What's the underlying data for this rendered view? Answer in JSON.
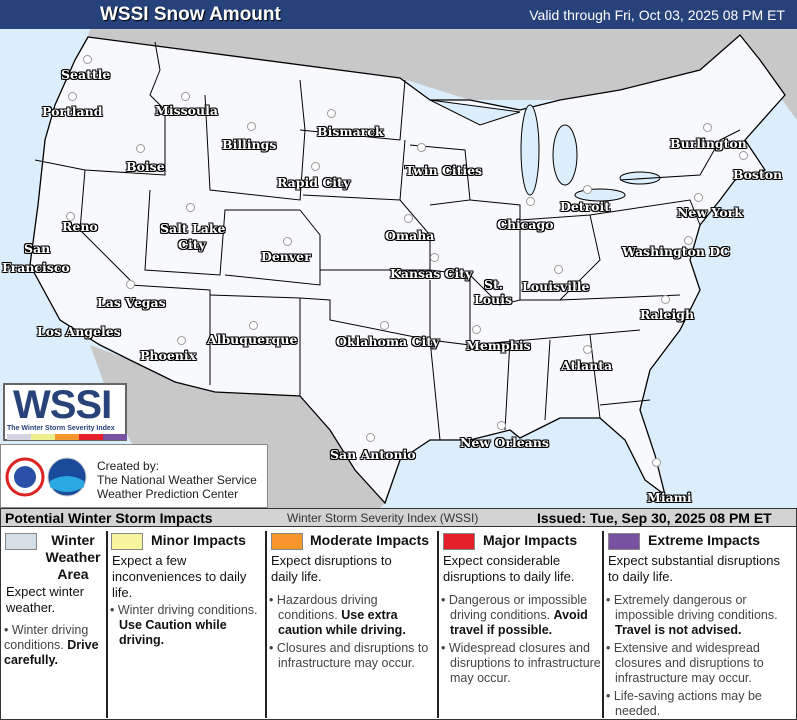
{
  "header": {
    "title": "WSSI Snow Amount",
    "valid": "Valid through Fri, Oct 03, 2025 08 PM ET",
    "bg_color": "#27427a"
  },
  "map": {
    "ocean_color": "#dcedfb",
    "foreign_land_color": "#c8c8c8",
    "us_land_color": "#f8f9fc",
    "cities": [
      "Seattle",
      "Portland",
      "Missoula",
      "Billings",
      "Bismarck",
      "Boise",
      "Rapid City",
      "Twin Cities",
      "Burlington",
      "Boston",
      "Detroit",
      "Chicago",
      "New York",
      "Omaha",
      "Reno",
      "Salt Lake",
      "City",
      "Denver",
      "San",
      "Francisco",
      "Washington DC",
      "Kansas City",
      "St.",
      "Louis",
      "Louisville",
      "Las Vegas",
      "Raleigh",
      "Los Angeles",
      "Albuquerque",
      "Oklahoma City",
      "Memphis",
      "Phoenix",
      "Atlanta",
      "San Antonio",
      "New Orleans",
      "Miami"
    ]
  },
  "logo": {
    "text": "WSSI",
    "subtitle": "The Winter Storm Severity Index"
  },
  "credit": {
    "line1": "Created by:",
    "line2": "The National Weather Service",
    "line3": "Weather Prediction Center"
  },
  "legend": {
    "heading": "Potential Winter Storm Impacts",
    "center": "Winter Storm Severity Index (WSSI)",
    "issued": "Issued: Tue, Sep 30, 2025 08 PM ET",
    "categories": [
      {
        "title": "Winter Weather Area",
        "color": "#d3dee6",
        "expect": "Expect winter weather.",
        "bullets": [
          {
            "text": "Winter driving conditions.",
            "bold": "Drive carefully."
          }
        ]
      },
      {
        "title": "Minor Impacts",
        "color": "#f8f59f",
        "expect": "Expect a few inconveniences to daily life.",
        "bullets": [
          {
            "text": "Winter driving conditions.",
            "bold": "Use Caution while driving."
          }
        ]
      },
      {
        "title": "Moderate Impacts",
        "color": "#f7962c",
        "expect": "Expect disruptions to daily life.",
        "bullets": [
          {
            "text": "Hazardous driving conditions.",
            "bold": "Use extra caution while driving."
          },
          {
            "text": "Closures and disruptions to infrastructure may occur.",
            "bold": ""
          }
        ]
      },
      {
        "title": "Major Impacts",
        "color": "#e5202a",
        "expect": "Expect considerable disruptions to daily life.",
        "bullets": [
          {
            "text": "Dangerous or impossible driving conditions.",
            "bold": "Avoid travel if possible."
          },
          {
            "text": "Widespread closures and disruptions to infrastructure may occur.",
            "bold": ""
          }
        ]
      },
      {
        "title": "Extreme Impacts",
        "color": "#7851a0",
        "expect": "Expect substantial disruptions to daily life.",
        "bullets": [
          {
            "text": "Extremely dangerous or impossible driving conditions.",
            "bold": "Travel is not advised."
          },
          {
            "text": "Extensive and widespread closures and disruptions to infrastructure may occur.",
            "bold": ""
          },
          {
            "text": "Life-saving actions may be needed.",
            "bold": ""
          }
        ]
      }
    ]
  }
}
